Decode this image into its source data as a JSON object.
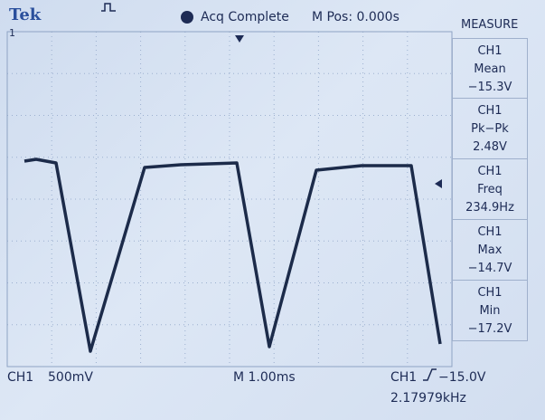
{
  "header": {
    "brand": "Tek",
    "status": "Acq Complete",
    "position": "M Pos: 0.000s"
  },
  "channel_marker": "1",
  "measure": {
    "title": "MEASURE",
    "items": [
      {
        "source": "CH1",
        "name": "Mean",
        "value": "−15.3V"
      },
      {
        "source": "CH1",
        "name": "Pk−Pk",
        "value": "2.48V"
      },
      {
        "source": "CH1",
        "name": "Freq",
        "value": "234.9Hz"
      },
      {
        "source": "CH1",
        "name": "Max",
        "value": "−14.7V"
      },
      {
        "source": "CH1",
        "name": "Min",
        "value": "−17.2V"
      }
    ]
  },
  "footer": {
    "channel": "CH1",
    "scale": "500mV",
    "timebase": "M 1.00ms",
    "trigger_source": "CH1",
    "trigger_level": "−15.0V",
    "frequency": "2.17979kHz"
  }
}
